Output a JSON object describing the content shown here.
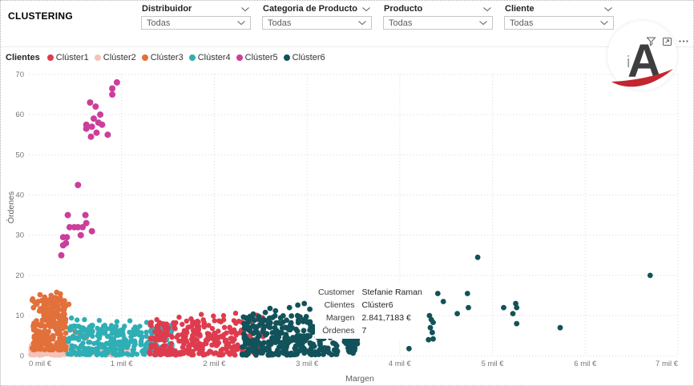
{
  "page": {
    "title": "CLUSTERING"
  },
  "slicers": [
    {
      "label": "Distribuidor",
      "value": "Todas"
    },
    {
      "label": "Categoria de Producto",
      "value": "Todas"
    },
    {
      "label": "Producto",
      "value": "Todas"
    },
    {
      "label": "Cliente",
      "value": "Todas"
    }
  ],
  "visual_header": {
    "icons": [
      "filter",
      "focus-mode",
      "more-options"
    ]
  },
  "logo": {
    "small_letter": "i",
    "letter": "A",
    "letter_color": "#3e3e40",
    "swoosh_color": "#c2262f"
  },
  "legend": {
    "title": "Clientes",
    "items": [
      {
        "label": "Clúster1",
        "color": "#DE3C4E"
      },
      {
        "label": "Clúster2",
        "color": "#F5C2BA"
      },
      {
        "label": "Clúster3",
        "color": "#E2703A"
      },
      {
        "label": "Clúster4",
        "color": "#2FAEB5"
      },
      {
        "label": "Clúster5",
        "color": "#CC3E9B"
      },
      {
        "label": "Clúster6",
        "color": "#12525A"
      }
    ]
  },
  "tooltip": {
    "rows": [
      {
        "label": "Customer",
        "value": "Stefanie Raman"
      },
      {
        "label": "Clientes",
        "value": "Clúster6"
      },
      {
        "label": "Margen",
        "value": "2.841,7183 €"
      },
      {
        "label": "Órdenes",
        "value": "7"
      }
    ]
  },
  "chart_data": {
    "type": "scatter",
    "xlabel": "Margen",
    "ylabel": "Órdenes",
    "xlim": [
      0,
      7
    ],
    "ylim": [
      0,
      70
    ],
    "x_ticks": [
      0,
      1,
      2,
      3,
      4,
      5,
      6,
      7
    ],
    "x_tick_labels": [
      "0 mil €",
      "1 mil €",
      "2 mil €",
      "3 mil €",
      "4 mil €",
      "5 mil €",
      "6 mil €",
      "7 mil €"
    ],
    "y_ticks": [
      0,
      10,
      20,
      30,
      40,
      50,
      60,
      70
    ],
    "grid": "dotted",
    "legend_position": "top-left",
    "draw_order": [
      "Clúster2",
      "Clúster3",
      "Clúster4",
      "Clúster1",
      "Clúster6",
      "Clúster5"
    ],
    "series": [
      {
        "name": "Clúster1",
        "color": "#DE3C4E",
        "r": 3.2,
        "regions": [
          {
            "x": [
              1.3,
              2.53
            ],
            "y": [
              0.2,
              9.0
            ],
            "n": 330,
            "ybias": 1.35,
            "seed": 11
          }
        ],
        "points": [
          [
            1.62,
            9.6
          ],
          [
            1.86,
            10.3
          ],
          [
            1.99,
            9.9
          ],
          [
            2.23,
            10.6
          ],
          [
            2.35,
            9.4
          ],
          [
            2.46,
            10.1
          ],
          [
            2.1,
            10.0
          ],
          [
            1.75,
            9.2
          ],
          [
            1.38,
            9.0
          ],
          [
            2.52,
            9.5
          ]
        ]
      },
      {
        "name": "Clúster2",
        "color": "#F5C2BA",
        "r": 3.2,
        "regions": [
          {
            "x": [
              0.02,
              0.45
            ],
            "y": [
              0.1,
              3.0
            ],
            "n": 140,
            "ybias": 1.0,
            "seed": 22
          },
          {
            "x": [
              0.45,
              1.08
            ],
            "y": [
              0.1,
              2.0
            ],
            "n": 70,
            "ybias": 1.0,
            "seed": 23
          }
        ],
        "points": []
      },
      {
        "name": "Clúster3",
        "color": "#E2703A",
        "r": 3.4,
        "regions": [
          {
            "x": [
              0.03,
              0.4
            ],
            "y": [
              1.5,
              14.5
            ],
            "n": 250,
            "ybias": 1.5,
            "seed": 33
          }
        ],
        "points": [
          [
            0.17,
            14.6
          ],
          [
            0.24,
            15.0
          ],
          [
            0.34,
            15.4
          ],
          [
            0.3,
            15.8
          ],
          [
            0.12,
            15.2
          ],
          [
            0.43,
            12.8
          ],
          [
            0.5,
            6.0
          ],
          [
            0.56,
            5.2
          ],
          [
            0.62,
            4.6
          ],
          [
            0.58,
            6.8
          ]
        ]
      },
      {
        "name": "Clúster4",
        "color": "#2FAEB5",
        "r": 3.2,
        "regions": [
          {
            "x": [
              0.42,
              1.56
            ],
            "y": [
              0.2,
              7.6
            ],
            "n": 320,
            "ybias": 1.2,
            "seed": 44
          }
        ],
        "points": [
          [
            0.46,
            9.4
          ],
          [
            0.52,
            8.9
          ],
          [
            0.6,
            9.0
          ],
          [
            0.76,
            8.8
          ],
          [
            0.95,
            8.5
          ],
          [
            1.09,
            8.7
          ],
          [
            1.27,
            8.3
          ],
          [
            1.45,
            8.0
          ]
        ]
      },
      {
        "name": "Clúster5",
        "color": "#CC3E9B",
        "r": 4.0,
        "regions": [],
        "points": [
          [
            0.95,
            68
          ],
          [
            0.9,
            66.5
          ],
          [
            0.9,
            65
          ],
          [
            0.66,
            63
          ],
          [
            0.72,
            62
          ],
          [
            0.77,
            60
          ],
          [
            0.7,
            59
          ],
          [
            0.62,
            57.5
          ],
          [
            0.68,
            57
          ],
          [
            0.75,
            58
          ],
          [
            0.79,
            57.5
          ],
          [
            0.62,
            56.5
          ],
          [
            0.73,
            55.5
          ],
          [
            0.67,
            54.5
          ],
          [
            0.85,
            55
          ],
          [
            0.53,
            42.5
          ],
          [
            0.42,
            35
          ],
          [
            0.61,
            35
          ],
          [
            0.44,
            32
          ],
          [
            0.49,
            32
          ],
          [
            0.53,
            32
          ],
          [
            0.58,
            32
          ],
          [
            0.62,
            33
          ],
          [
            0.68,
            31
          ],
          [
            0.56,
            30
          ],
          [
            0.37,
            29.5
          ],
          [
            0.41,
            29.5
          ],
          [
            0.4,
            28
          ],
          [
            0.37,
            27.5
          ],
          [
            0.35,
            25
          ]
        ]
      },
      {
        "name": "Clúster6",
        "color": "#12525A",
        "r": 3.4,
        "regions": [
          {
            "x": [
              2.3,
              3.33
            ],
            "y": [
              0.2,
              10.0
            ],
            "n": 290,
            "ybias": 1.35,
            "seed": 66
          },
          {
            "type": "triangle",
            "cx": 3.48,
            "y": [
              0.6,
              4.2
            ],
            "halfwidth": 0.09,
            "n": 42,
            "seed": 67
          }
        ],
        "points": [
          [
            2.42,
            10.4
          ],
          [
            2.55,
            10.8
          ],
          [
            2.6,
            11.8
          ],
          [
            2.66,
            11.2
          ],
          [
            2.81,
            12.0
          ],
          [
            2.9,
            12.6
          ],
          [
            2.97,
            13.0
          ],
          [
            3.03,
            11.6
          ],
          [
            3.12,
            12.2
          ],
          [
            3.22,
            10.8
          ],
          [
            4.1,
            1.8
          ],
          [
            4.31,
            4.0
          ],
          [
            4.33,
            7.0
          ],
          [
            4.34,
            9.0
          ],
          [
            4.32,
            10.0
          ],
          [
            4.35,
            5.8
          ],
          [
            4.36,
            8.3
          ],
          [
            4.36,
            4.2
          ],
          [
            4.41,
            15.5
          ],
          [
            4.47,
            13.5
          ],
          [
            4.62,
            10.5
          ],
          [
            4.73,
            15.5
          ],
          [
            4.74,
            12.0
          ],
          [
            4.84,
            24.5
          ],
          [
            5.12,
            12.0
          ],
          [
            5.22,
            10.5
          ],
          [
            5.25,
            13.0
          ],
          [
            5.26,
            12.0
          ],
          [
            5.26,
            8.0
          ],
          [
            5.73,
            7.0
          ],
          [
            6.7,
            20.0
          ]
        ]
      }
    ]
  }
}
